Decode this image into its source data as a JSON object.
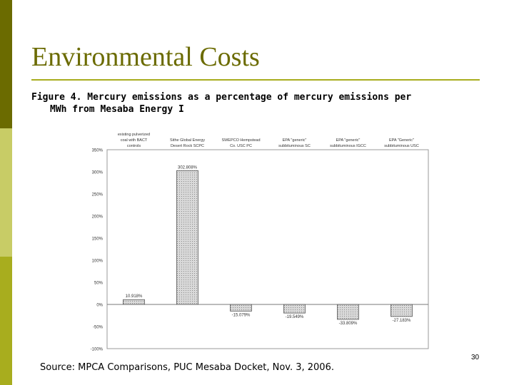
{
  "slide": {
    "title": "Environmental Costs",
    "caption_line1": "Figure 4.  Mercury emissions as a percentage of mercury emissions per",
    "caption_line2": "MWh from Mesaba Energy I",
    "source": "Source: MPCA Comparisons, PUC Mesaba Docket, Nov. 3, 2006.",
    "page_number": "30"
  },
  "colors": {
    "sidebar_dark": "#6b6b00",
    "sidebar_light": "#c8cc66",
    "sidebar_mid": "#a8ad1e",
    "title": "#6b6b00",
    "bar_fill": "#cccccc",
    "bar_stroke": "#555555",
    "plot_border": "#999999"
  },
  "chart_data": {
    "type": "bar",
    "title": "",
    "xlabel": "",
    "ylabel": "",
    "categories": [
      "existing pulverized coal with BACT controls",
      "Sithe Global Energy Desert Rock SCPC",
      "SWEPCO Hempstead Co. USC PC",
      "EPA \"generic\" subbituminous SC",
      "EPA \"generic\" subbituminous IGCC",
      "EPA \"Generic\" subbituminous USC"
    ],
    "category_lines": [
      [
        "existing pulverized",
        "coal with BACT",
        "controls"
      ],
      [
        "Sithe Global Energy",
        "Desert Rock SCPC"
      ],
      [
        "SWEPCO Hempstead",
        "Co. USC PC"
      ],
      [
        "EPA \"generic\"",
        "subbituminous SC"
      ],
      [
        "EPA \"generic\"",
        "subbituminous IGCC"
      ],
      [
        "EPA \"Generic\"",
        "subbituminous USC"
      ]
    ],
    "values": [
      10.918,
      302.808,
      -15.079,
      -19.549,
      -33.809,
      -27.183
    ],
    "data_labels": [
      "10.918%",
      "302.808%",
      "-15.079%",
      "-19.549%",
      "-33.809%",
      "-27.183%"
    ],
    "ylim": [
      -100,
      350
    ],
    "yticks": [
      350,
      300,
      250,
      200,
      150,
      100,
      50,
      0,
      -50,
      -100
    ],
    "ytick_labels": [
      "350%",
      "300%",
      "250%",
      "200%",
      "150%",
      "100%",
      "50%",
      "0%",
      "-50%",
      "-100%"
    ],
    "grid": false,
    "legend": "none"
  }
}
